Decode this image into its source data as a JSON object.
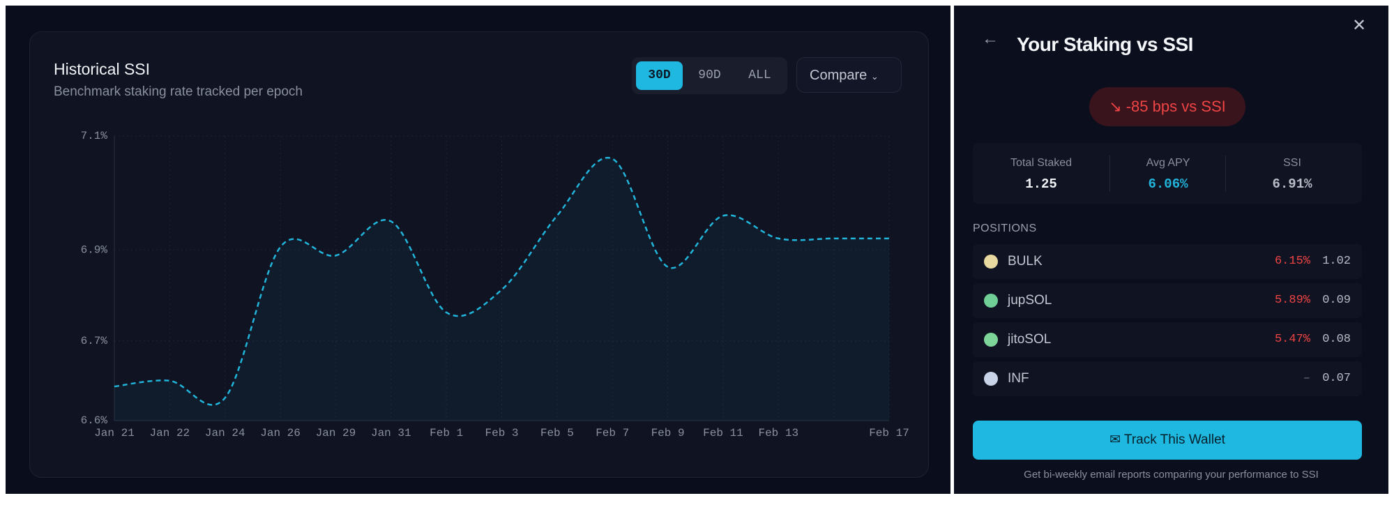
{
  "chart_data": {
    "type": "line",
    "title": "Historical SSI",
    "subtitle": "Benchmark staking rate tracked per epoch",
    "categories": [
      "Jan 21",
      "Jan 22",
      "Jan 24",
      "Jan 26",
      "Jan 29",
      "Jan 31",
      "Feb 1",
      "Feb 3",
      "Feb 5",
      "Feb 7",
      "Feb 9",
      "Feb 11",
      "Feb 13",
      null,
      "Feb 17"
    ],
    "series": [
      {
        "name": "SSI",
        "color": "#22b5db",
        "values": [
          6.66,
          6.67,
          6.64,
          6.905,
          6.89,
          6.95,
          6.79,
          6.83,
          6.96,
          7.06,
          6.87,
          6.96,
          6.92,
          6.92,
          6.92
        ]
      }
    ],
    "ylim": [
      6.6,
      7.1
    ],
    "yticks": [
      {
        "value": 6.6,
        "label": "6.6%"
      },
      {
        "value": 6.74,
        "label": "6.7%"
      },
      {
        "value": 6.9,
        "label": "6.9%"
      },
      {
        "value": 7.1,
        "label": "7.1%"
      }
    ],
    "grid": true
  },
  "controls": {
    "ranges": [
      "30D",
      "90D",
      "ALL"
    ],
    "compare": "Compare"
  },
  "panel": {
    "title": "Your Staking vs SSI",
    "badge": "-85 bps vs SSI",
    "stats": [
      {
        "label": "Total Staked",
        "value": "1.25"
      },
      {
        "label": "Avg APY",
        "value": "6.06%"
      },
      {
        "label": "SSI",
        "value": "6.91%"
      }
    ],
    "positions_title": "POSITIONS",
    "positions": [
      {
        "name": "BULK",
        "apy": "6.15%",
        "amount": "1.02"
      },
      {
        "name": "jupSOL",
        "apy": "5.89%",
        "amount": "0.09"
      },
      {
        "name": "jitoSOL",
        "apy": "5.47%",
        "amount": "0.08"
      },
      {
        "name": "INF",
        "apy": "–",
        "amount": "0.07"
      }
    ],
    "button": "Track This Wallet",
    "footer": "Get bi-weekly email reports comparing your performance to SSI"
  }
}
